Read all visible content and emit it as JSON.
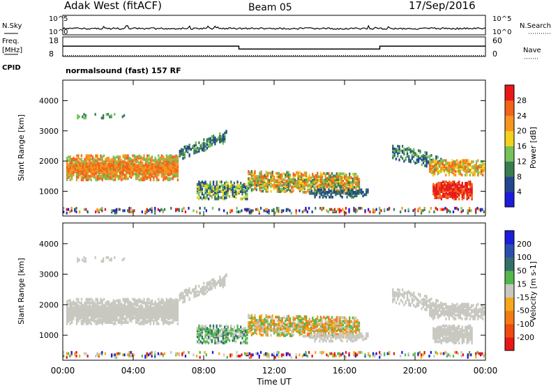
{
  "header": {
    "title": "Adak West (fitACF)",
    "beam": "Beam 05",
    "date": "17/Sep/2016"
  },
  "left_labels": {
    "nsky": "N.Sky",
    "freq_line1": "Freq.",
    "freq_line2": "[MHz]",
    "cpid": "CPID"
  },
  "right_labels": {
    "nsearch": "N.Search",
    "nave": "Nave"
  },
  "program": "normalsound (fast) 157 RF",
  "chart_data": [
    {
      "type": "line",
      "panel": "noise",
      "x": [
        0,
        24
      ],
      "yticks": [
        "10^5",
        "10^0"
      ],
      "yticks_right": [
        "10^5",
        "10^0"
      ]
    },
    {
      "type": "line",
      "panel": "frequency",
      "ylabel": "Freq. [MHz]",
      "yticks": [
        "18",
        "8"
      ],
      "yticks_right": [
        "60",
        "0"
      ],
      "series": [
        {
          "name": "Freq.",
          "x": [
            0,
            10,
            10,
            18,
            18,
            24
          ],
          "values": [
            13.3,
            13.3,
            11.8,
            11.8,
            13.3,
            13.3
          ]
        },
        {
          "name": "Nave",
          "x": [
            0,
            24
          ],
          "values": [
            3,
            3
          ]
        }
      ]
    },
    {
      "type": "heatmap",
      "panel": "power",
      "ylabel": "Slant Range [km]",
      "yticks": [
        "1000",
        "2000",
        "3000",
        "4000"
      ],
      "ylim": [
        180,
        4680
      ],
      "colorbar_label": "Power [dB]",
      "colorbar_ticks": [
        "4",
        "8",
        "12",
        "16",
        "20",
        "24",
        "28"
      ],
      "colorbar_colors": [
        "#1c1cdc",
        "#22478f",
        "#3a7d4f",
        "#73c25a",
        "#f2d21a",
        "#f7951e",
        "#f26418",
        "#e81818"
      ]
    },
    {
      "type": "heatmap",
      "panel": "velocity",
      "ylabel": "Slant Range [km]",
      "yticks": [
        "1000",
        "2000",
        "3000",
        "4000"
      ],
      "ylim": [
        180,
        4680
      ],
      "xlabel": "Time UT",
      "xticks": [
        "00:00",
        "04:00",
        "08:00",
        "12:00",
        "16:00",
        "20:00",
        "00:00"
      ],
      "colorbar_label": "Velocity [m s-1]",
      "colorbar_ticks": [
        "200",
        "100",
        "50",
        "15",
        "-15",
        "-50",
        "-100",
        "-200"
      ],
      "colorbar_colors": [
        "#1c1cdc",
        "#2b4fb0",
        "#356f6a",
        "#52b84a",
        "#c8c8c0",
        "#f5a81c",
        "#f27c12",
        "#f04a10",
        "#e81818"
      ]
    }
  ]
}
